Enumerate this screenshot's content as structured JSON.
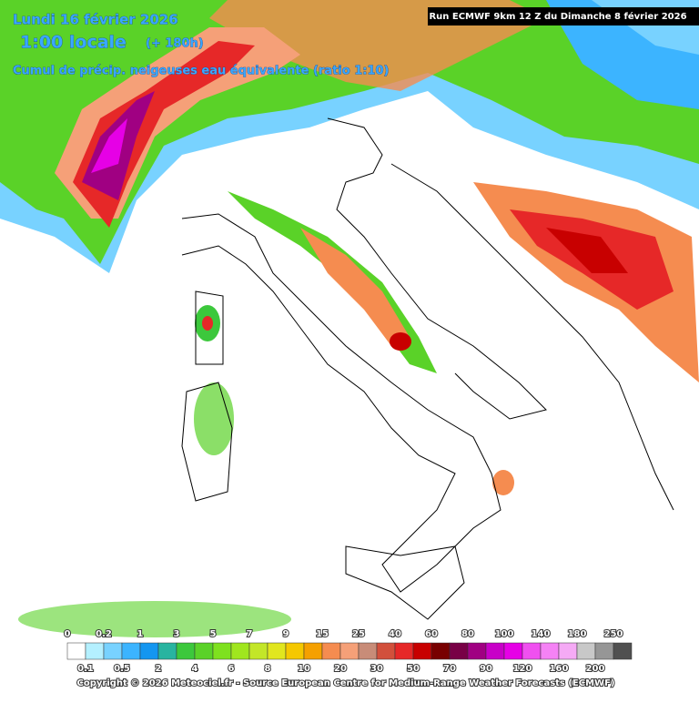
{
  "header": {
    "date": "Lundi 16 février 2026",
    "time": "1:00 locale",
    "lead": "(+ 180h)",
    "subtitle": "Cumul de précip. neigeuses  eau équivalente (ratio 1:10)",
    "run": "Run ECMWF 9km 12 Z du Dimanche 8 février 2026"
  },
  "legend": {
    "values": [
      0,
      0.1,
      0.2,
      0.5,
      1,
      2,
      3,
      4,
      5,
      6,
      7,
      8,
      9,
      10,
      15,
      20,
      25,
      30,
      40,
      50,
      60,
      70,
      80,
      90,
      100,
      120,
      140,
      160,
      180,
      200,
      250
    ],
    "colors": [
      "#ffffff",
      "#b4f0ff",
      "#78d2ff",
      "#3cb4ff",
      "#1496f0",
      "#28b4a0",
      "#3cc83c",
      "#5ad228",
      "#7ee11e",
      "#a0e61e",
      "#c3e628",
      "#e1e61e",
      "#f5c800",
      "#f5a000",
      "#f58c50",
      "#f5a078",
      "#c88c78",
      "#d2503c",
      "#e62828",
      "#c80000",
      "#780000",
      "#780046",
      "#a00082",
      "#c800c8",
      "#e600e6",
      "#f050f0",
      "#f582f5",
      "#f5aaf5",
      "#c8c8c8",
      "#969696",
      "#505050"
    ]
  },
  "footer": {
    "copyright": "Copyright © 2026 Meteociel.fr - Source European Centre for Medium-Range Weather Forecasts (ECMWF)"
  }
}
